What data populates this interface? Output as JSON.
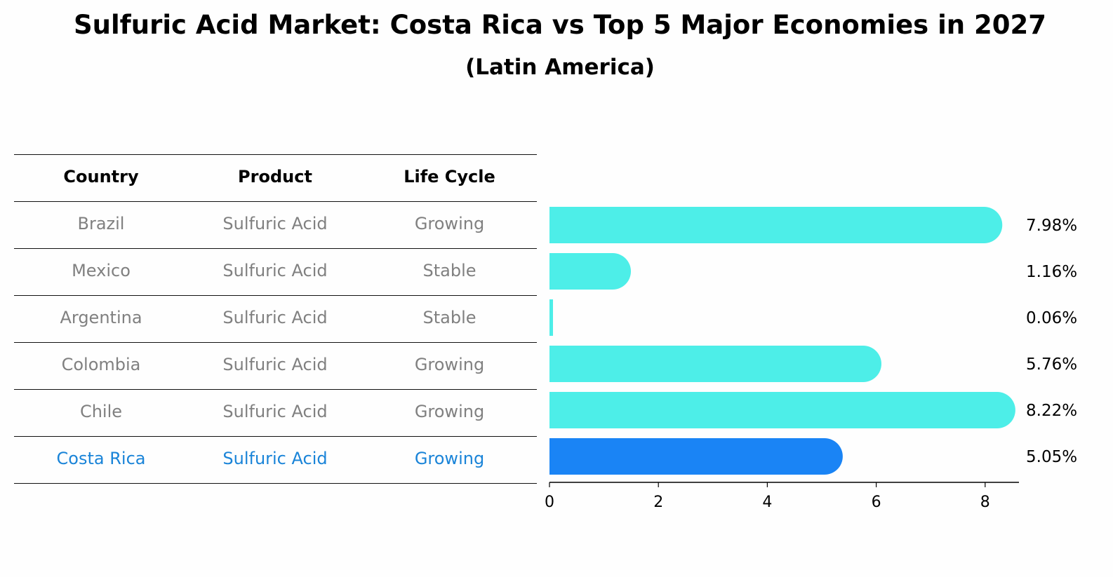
{
  "title": "Sulfuric Acid Market: Costa Rica vs Top 5 Major Economies in 2027",
  "subtitle": "(Latin America)",
  "table": {
    "headers": [
      "Country",
      "Product",
      "Life Cycle"
    ],
    "rows": [
      [
        "Brazil",
        "Sulfuric Acid",
        "Growing"
      ],
      [
        "Mexico",
        "Sulfuric Acid",
        "Stable"
      ],
      [
        "Argentina",
        "Sulfuric Acid",
        "Stable"
      ],
      [
        "Colombia",
        "Sulfuric Acid",
        "Growing"
      ],
      [
        "Chile",
        "Sulfuric Acid",
        "Growing"
      ],
      [
        "Costa Rica",
        "Sulfuric Acid",
        "Growing"
      ]
    ]
  },
  "chart_data": {
    "type": "bar",
    "orientation": "horizontal",
    "title": "Sulfuric Acid Market: Costa Rica vs Top 5 Major Economies in 2027",
    "subtitle": "(Latin America)",
    "categories": [
      "Brazil",
      "Mexico",
      "Argentina",
      "Colombia",
      "Chile",
      "Costa Rica"
    ],
    "values": [
      7.98,
      1.16,
      0.06,
      5.76,
      8.22,
      5.05
    ],
    "value_labels": [
      "7.98%",
      "1.16%",
      "0.06%",
      "5.76%",
      "8.22%",
      "5.05%"
    ],
    "highlight": "Costa Rica",
    "xlim": [
      0,
      8.6
    ],
    "xticks": [
      0,
      2,
      4,
      6,
      8
    ],
    "xlabel": "",
    "ylabel": "",
    "grid": false,
    "colors": {
      "default": "#4deee8",
      "highlight": "#1a84f5"
    }
  }
}
